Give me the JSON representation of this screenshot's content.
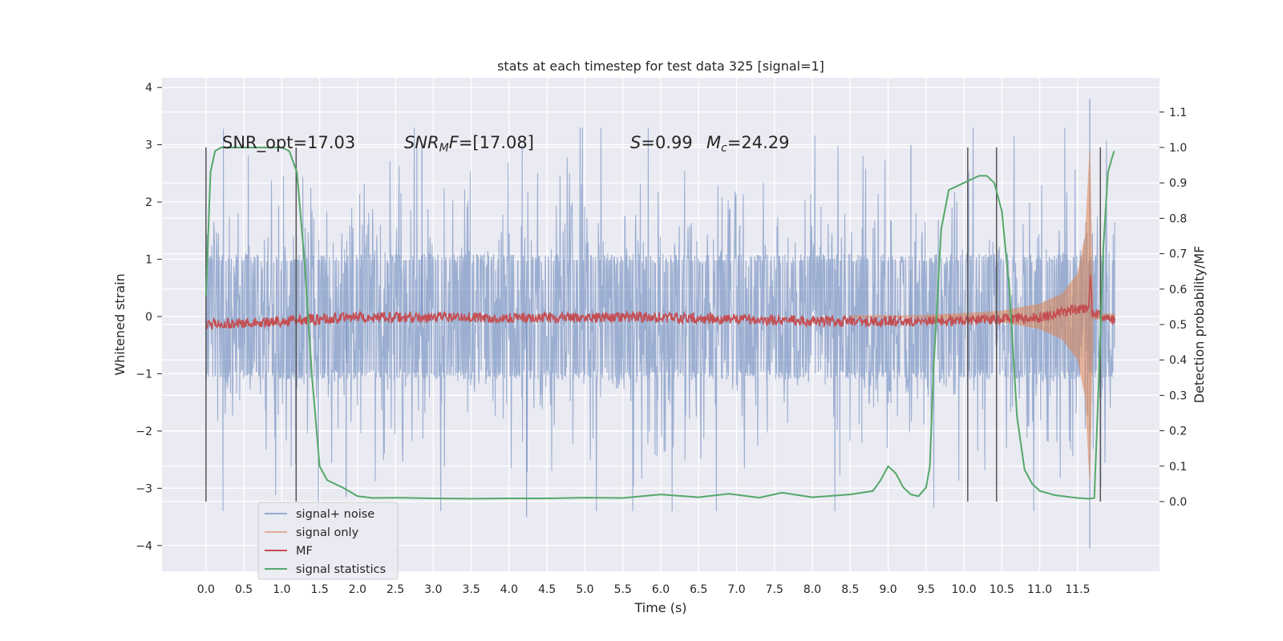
{
  "chart_data": {
    "type": "line",
    "title": "stats at each timestep for test data 325 [signal=1]",
    "xlabel": "Time (s)",
    "ylabel_left": "Whitened strain",
    "ylabel_right": "Detection probability/MF",
    "xlim": [
      -0.58,
      12.58
    ],
    "ylim_left": [
      -4.45,
      4.17
    ],
    "ylim_right": [
      -0.197,
      1.197
    ],
    "x_ticks": [
      "0.0",
      "0.5",
      "1.0",
      "1.5",
      "2.0",
      "2.5",
      "3.0",
      "3.5",
      "4.0",
      "4.5",
      "5.0",
      "5.5",
      "6.0",
      "6.5",
      "7.0",
      "7.5",
      "8.0",
      "8.5",
      "9.0",
      "9.5",
      "10.0",
      "10.5",
      "11.0",
      "11.5"
    ],
    "y_ticks_left": [
      "4",
      "3",
      "2",
      "1",
      "0",
      "−1",
      "−2",
      "−3",
      "−4"
    ],
    "y_ticks_right": [
      "0.0",
      "0.1",
      "0.2",
      "0.3",
      "0.4",
      "0.5",
      "0.6",
      "0.7",
      "0.8",
      "0.9",
      "1.0",
      "1.1"
    ],
    "grid": true,
    "legend_position": "lower-left",
    "annotations": {
      "snr_opt": "SNR_opt=17.03",
      "snr_mf_label": "SNR",
      "snr_mf_sub": "M",
      "snr_mf_tail": "F",
      "snr_mf_value": "=[17.08]",
      "s_label": "S",
      "s_value": "=0.99",
      "mc_label": "M",
      "mc_sub": "c",
      "mc_value": "=24.29"
    },
    "vertical_lines_s": [
      0.0,
      1.19,
      10.05,
      10.43,
      11.8
    ],
    "series": [
      {
        "name": "signal+ noise",
        "color": "#4c72b0",
        "description_range": [
          0.0,
          11.99
        ],
        "core_amplitude": 1.1,
        "peak_range": [
          -3.5,
          3.8
        ]
      },
      {
        "name": "signal only",
        "color": "#dd8452",
        "x": [
          9.5,
          10.0,
          10.5,
          11.0,
          11.3,
          11.5,
          11.6,
          11.66,
          11.7
        ],
        "envelope": [
          0.03,
          0.06,
          0.1,
          0.22,
          0.4,
          0.75,
          1.4,
          2.9,
          0.4
        ]
      },
      {
        "name": "MF",
        "color": "#c44e52",
        "x": [
          0.0,
          2.0,
          4.0,
          6.0,
          8.0,
          10.0,
          11.0,
          11.65,
          11.67,
          11.69,
          12.0
        ],
        "y": [
          0.5,
          0.52,
          0.52,
          0.52,
          0.51,
          0.51,
          0.52,
          0.55,
          0.66,
          0.53,
          0.51
        ]
      },
      {
        "name": "signal statistics",
        "color": "#55a868",
        "x": [
          0.0,
          0.06,
          0.12,
          0.2,
          0.3,
          0.5,
          0.8,
          1.0,
          1.1,
          1.2,
          1.3,
          1.4,
          1.5,
          1.6,
          1.8,
          2.0,
          2.2,
          2.5,
          3.0,
          3.5,
          4.0,
          4.5,
          5.0,
          5.5,
          6.0,
          6.5,
          6.9,
          7.3,
          7.6,
          8.0,
          8.5,
          8.8,
          8.9,
          9.0,
          9.1,
          9.2,
          9.3,
          9.4,
          9.5,
          9.55,
          9.6,
          9.7,
          9.8,
          10.0,
          10.2,
          10.3,
          10.4,
          10.5,
          10.6,
          10.7,
          10.8,
          10.9,
          11.0,
          11.2,
          11.5,
          11.65,
          11.72,
          11.78,
          11.84,
          11.9,
          11.98
        ],
        "y": [
          0.58,
          0.93,
          0.99,
          1.0,
          1.0,
          1.0,
          1.0,
          1.0,
          0.99,
          0.93,
          0.68,
          0.35,
          0.1,
          0.06,
          0.04,
          0.015,
          0.01,
          0.011,
          0.009,
          0.008,
          0.009,
          0.009,
          0.011,
          0.01,
          0.02,
          0.012,
          0.022,
          0.011,
          0.025,
          0.012,
          0.02,
          0.03,
          0.06,
          0.1,
          0.08,
          0.04,
          0.02,
          0.015,
          0.04,
          0.1,
          0.38,
          0.77,
          0.88,
          0.9,
          0.92,
          0.92,
          0.9,
          0.82,
          0.6,
          0.24,
          0.09,
          0.05,
          0.03,
          0.018,
          0.01,
          0.008,
          0.01,
          0.35,
          0.72,
          0.93,
          0.99
        ]
      }
    ]
  }
}
